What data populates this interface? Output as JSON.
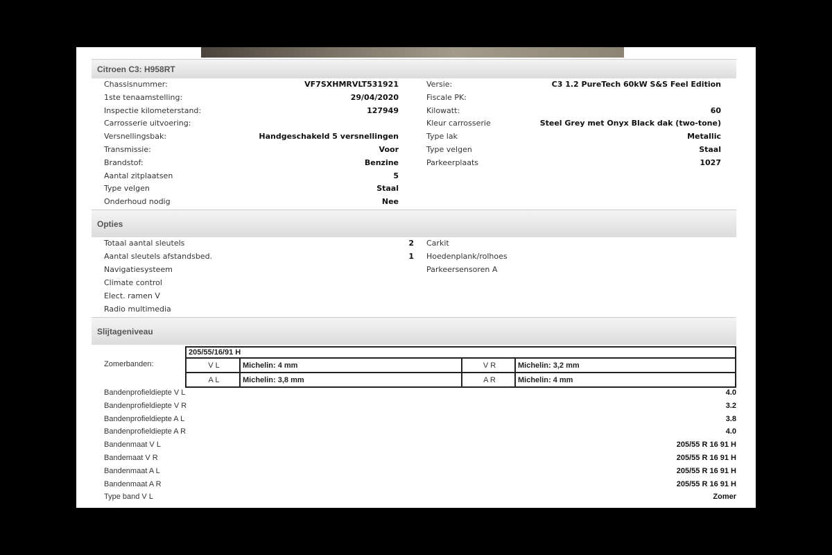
{
  "vehicle": {
    "title": "Citroen C3: H958RT",
    "left": [
      {
        "label": "Chassisnummer:",
        "value": "VF7SXHMRVLT531921"
      },
      {
        "label": "1ste tenaamstelling:",
        "value": "29/04/2020"
      },
      {
        "label": "Inspectie kilometerstand:",
        "value": "127949"
      },
      {
        "label": "Carrosserie uitvoering:",
        "value": ""
      },
      {
        "label": "Versnellingsbak:",
        "value": "Handgeschakeld 5 versnellingen"
      },
      {
        "label": "Transmissie:",
        "value": "Voor"
      },
      {
        "label": "Brandstof:",
        "value": "Benzine"
      },
      {
        "label": "Aantal zitplaatsen",
        "value": "5"
      },
      {
        "label": "Type velgen",
        "value": "Staal"
      },
      {
        "label": "Onderhoud nodig",
        "value": "Nee"
      }
    ],
    "right": [
      {
        "label": "Versie:",
        "value": "C3 1.2 PureTech 60kW S&S Feel Edition"
      },
      {
        "label": "Fiscale PK:",
        "value": ""
      },
      {
        "label": "Kilowatt:",
        "value": "60"
      },
      {
        "label": "Kleur carrosserie",
        "value": "Steel Grey met Onyx Black dak (two-tone)"
      },
      {
        "label": "Type lak",
        "value": "Metallic"
      },
      {
        "label": "Type velgen",
        "value": "Staal"
      },
      {
        "label": "Parkeerplaats",
        "value": "1027"
      }
    ]
  },
  "options": {
    "title": "Opties",
    "left": [
      {
        "label": "Totaal aantal sleutels",
        "value": "2"
      },
      {
        "label": "Aantal sleutels afstandsbed.",
        "value": "1"
      },
      {
        "label": "Navigatiesysteem",
        "value": ""
      },
      {
        "label": "Climate control",
        "value": ""
      },
      {
        "label": "Elect. ramen V",
        "value": ""
      },
      {
        "label": "Radio multimedia",
        "value": ""
      }
    ],
    "right": [
      "Carkit",
      "Hoedenplank/rolhoes",
      "Parkeersensoren A"
    ]
  },
  "wear": {
    "title": "Slijtageniveau",
    "tire_label": "Zomerbanden:",
    "tire_size": "205/55/16/91 H",
    "tires": [
      [
        "V L",
        "Michelin: 4 mm",
        "V R",
        "Michelin: 3,2 mm"
      ],
      [
        "A L",
        "Michelin: 3,8 mm",
        "A R",
        "Michelin: 4 mm"
      ]
    ],
    "rows": [
      {
        "label": "Bandenprofieldiepte V L",
        "value": "4.0"
      },
      {
        "label": "Bandenprofieldiepte V R",
        "value": "3.2"
      },
      {
        "label": "Bandenprofieldiepte A L",
        "value": "3.8"
      },
      {
        "label": "Bandenprofieldiepte A R",
        "value": "4.0"
      },
      {
        "label": "Bandenmaat V L",
        "value": "205/55 R 16 91 H"
      },
      {
        "label": "Bandemaat V R",
        "value": "205/55 R 16 91 H"
      },
      {
        "label": "Bandenmaat A L",
        "value": "205/55 R 16 91 H"
      },
      {
        "label": "Bandenmaat A R",
        "value": "205/55 R 16 91 H"
      },
      {
        "label": "Type band V L",
        "value": "Zomer"
      }
    ]
  }
}
